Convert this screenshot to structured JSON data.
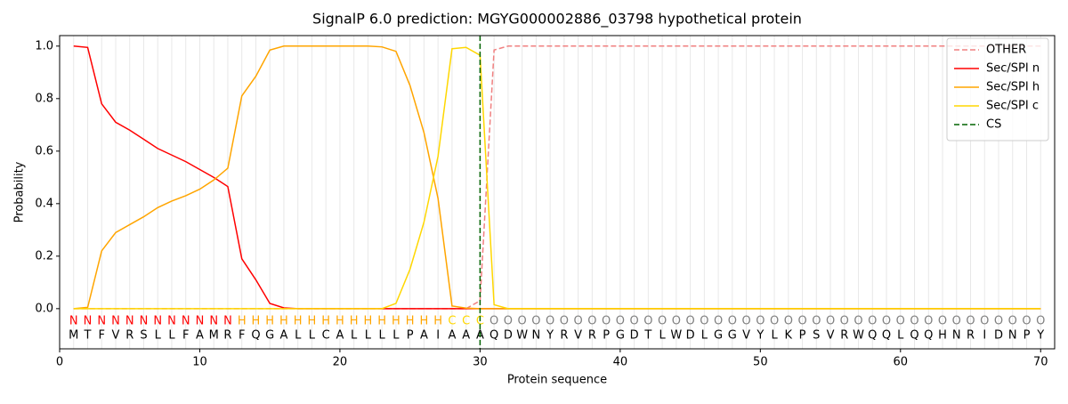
{
  "chart_data": {
    "type": "line",
    "title": "SignalP 6.0 prediction: MGYG000002886_03798 hypothetical protein",
    "x_label": "Protein sequence",
    "y_label": "Probability",
    "x": [
      1,
      2,
      3,
      4,
      5,
      6,
      7,
      8,
      9,
      10,
      11,
      12,
      13,
      14,
      15,
      16,
      17,
      18,
      19,
      20,
      21,
      22,
      23,
      24,
      25,
      26,
      27,
      28,
      29,
      30,
      31,
      32,
      33,
      34,
      35,
      36,
      37,
      38,
      39,
      40,
      41,
      42,
      43,
      44,
      45,
      46,
      47,
      48,
      49,
      50,
      51,
      52,
      53,
      54,
      55,
      56,
      57,
      58,
      59,
      60,
      61,
      62,
      63,
      64,
      65,
      66,
      67,
      68,
      69,
      70
    ],
    "sequence": [
      "M",
      "T",
      "F",
      "V",
      "R",
      "S",
      "L",
      "L",
      "F",
      "A",
      "M",
      "R",
      "F",
      "Q",
      "G",
      "A",
      "L",
      "L",
      "C",
      "A",
      "L",
      "L",
      "L",
      "L",
      "P",
      "A",
      "I",
      "A",
      "A",
      "A",
      "Q",
      "D",
      "W",
      "N",
      "Y",
      "R",
      "V",
      "R",
      "P",
      "G",
      "D",
      "T",
      "L",
      "W",
      "D",
      "L",
      "G",
      "G",
      "V",
      "Y",
      "L",
      "K",
      "P",
      "S",
      "V",
      "R",
      "W",
      "Q",
      "Q",
      "L",
      "Q",
      "Q",
      "H",
      "N",
      "R",
      "I",
      "D",
      "N",
      "P",
      "Y"
    ],
    "labels": [
      "N",
      "N",
      "N",
      "N",
      "N",
      "N",
      "N",
      "N",
      "N",
      "N",
      "N",
      "N",
      "H",
      "H",
      "H",
      "H",
      "H",
      "H",
      "H",
      "H",
      "H",
      "H",
      "H",
      "H",
      "H",
      "H",
      "H",
      "C",
      "C",
      "C",
      "O",
      "O",
      "O",
      "O",
      "O",
      "O",
      "O",
      "O",
      "O",
      "O",
      "O",
      "O",
      "O",
      "O",
      "O",
      "O",
      "O",
      "O",
      "O",
      "O",
      "O",
      "O",
      "O",
      "O",
      "O",
      "O",
      "O",
      "O",
      "O",
      "O",
      "O",
      "O",
      "O",
      "O",
      "O",
      "O",
      "O",
      "O",
      "O",
      "O"
    ],
    "label_colors": {
      "N": "#ff0000",
      "H": "#ffa500",
      "C": "#ffd700",
      "O": "#808080"
    },
    "series": [
      {
        "name": "OTHER",
        "color": "#f08080",
        "dashed": true,
        "values": [
          0,
          0,
          0,
          0,
          0,
          0,
          0,
          0,
          0,
          0,
          0,
          0,
          0,
          0,
          0,
          0,
          0,
          0,
          0,
          0,
          0,
          0,
          0,
          0,
          0,
          0,
          0,
          0,
          0,
          0.03,
          0.985,
          1,
          1,
          1,
          1,
          1,
          1,
          1,
          1,
          1,
          1,
          1,
          1,
          1,
          1,
          1,
          1,
          1,
          1,
          1,
          1,
          1,
          1,
          1,
          1,
          1,
          1,
          1,
          1,
          1,
          1,
          1,
          1,
          1,
          1,
          1,
          1,
          1,
          1,
          1
        ]
      },
      {
        "name": "Sec/SPI n",
        "color": "#ff0000",
        "values": [
          1,
          0.995,
          0.78,
          0.71,
          0.68,
          0.645,
          0.61,
          0.585,
          0.56,
          0.53,
          0.5,
          0.465,
          0.19,
          0.11,
          0.02,
          0.003,
          0,
          0,
          0,
          0,
          0,
          0,
          0,
          0,
          0,
          0,
          0,
          0,
          0,
          0,
          0,
          0,
          0,
          0,
          0,
          0,
          0,
          0,
          0,
          0,
          0,
          0,
          0,
          0,
          0,
          0,
          0,
          0,
          0,
          0,
          0,
          0,
          0,
          0,
          0,
          0,
          0,
          0,
          0,
          0,
          0,
          0,
          0,
          0,
          0,
          0,
          0,
          0,
          0,
          0
        ]
      },
      {
        "name": "Sec/SPI h",
        "color": "#ffa500",
        "values": [
          0,
          0.005,
          0.22,
          0.29,
          0.32,
          0.35,
          0.385,
          0.41,
          0.43,
          0.455,
          0.49,
          0.535,
          0.81,
          0.885,
          0.985,
          1,
          1,
          1,
          1,
          1,
          1,
          1,
          0.997,
          0.98,
          0.85,
          0.67,
          0.42,
          0.01,
          0.002,
          0,
          0,
          0,
          0,
          0,
          0,
          0,
          0,
          0,
          0,
          0,
          0,
          0,
          0,
          0,
          0,
          0,
          0,
          0,
          0,
          0,
          0,
          0,
          0,
          0,
          0,
          0,
          0,
          0,
          0,
          0,
          0,
          0,
          0,
          0,
          0,
          0,
          0,
          0,
          0,
          0
        ]
      },
      {
        "name": "Sec/SPI c",
        "color": "#ffd700",
        "values": [
          0,
          0,
          0,
          0,
          0,
          0,
          0,
          0,
          0,
          0,
          0,
          0,
          0,
          0,
          0,
          0,
          0,
          0,
          0,
          0,
          0,
          0,
          0,
          0.02,
          0.15,
          0.33,
          0.58,
          0.99,
          0.995,
          0.965,
          0.015,
          0,
          0,
          0,
          0,
          0,
          0,
          0,
          0,
          0,
          0,
          0,
          0,
          0,
          0,
          0,
          0,
          0,
          0,
          0,
          0,
          0,
          0,
          0,
          0,
          0,
          0,
          0,
          0,
          0,
          0,
          0,
          0,
          0,
          0,
          0,
          0,
          0,
          0,
          0
        ]
      }
    ],
    "vlines": [
      {
        "name": "CS",
        "x": 30,
        "color": "#006400"
      }
    ],
    "xlim": [
      0,
      71
    ],
    "ylim": [
      -0.153,
      1.04
    ],
    "xticks": [
      0,
      10,
      20,
      30,
      40,
      50,
      60,
      70
    ],
    "yticks": [
      {
        "value": 0,
        "label": "0.0"
      },
      {
        "value": 0.2,
        "label": "0.2"
      },
      {
        "value": 0.4,
        "label": "0.4"
      },
      {
        "value": 0.6,
        "label": "0.6"
      },
      {
        "value": 0.8,
        "label": "0.8"
      },
      {
        "value": 1,
        "label": "1.0"
      }
    ],
    "grid": true,
    "legend": "upper right"
  }
}
